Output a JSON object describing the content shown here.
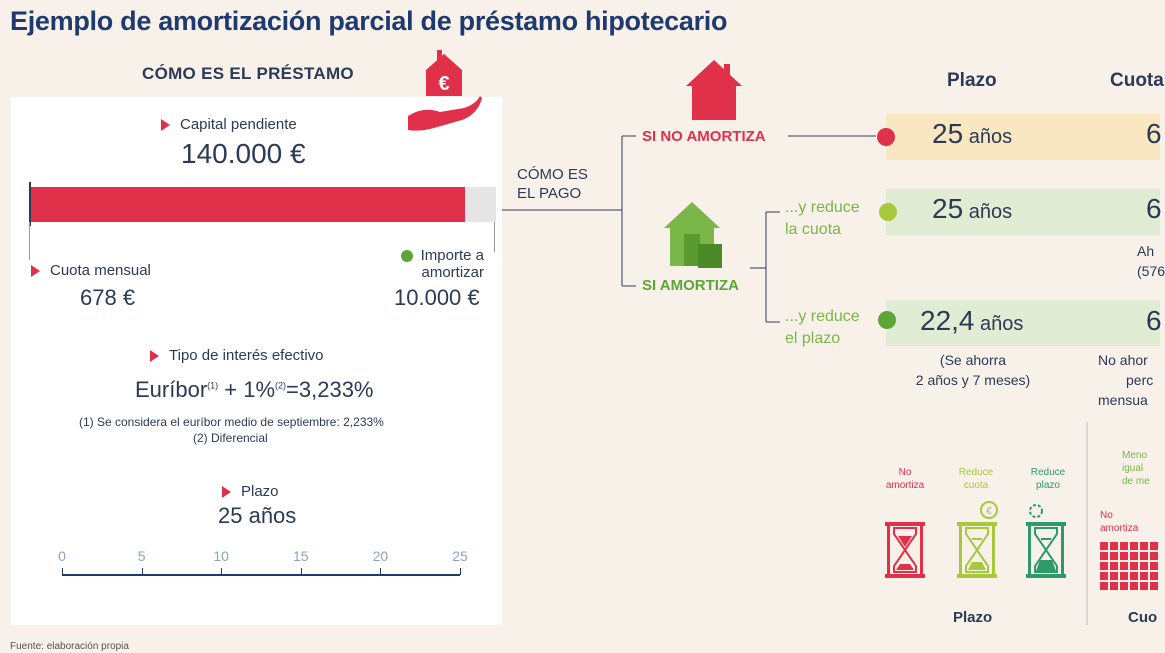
{
  "title": "Ejemplo de amortización parcial de préstamo hipotecario",
  "left": {
    "heading": "CÓMO ES EL PRÉSTAMO",
    "capital_label": "Capital pendiente",
    "capital_value": "140.000 €",
    "cuota_label": "Cuota mensual",
    "cuota_value": "678 €",
    "importe_label_1": "Importe a",
    "importe_label_2": "amortizar",
    "importe_value": "10.000 €",
    "interes_label": "Tipo de interés efectivo",
    "interes_formula_a": "Euríbor",
    "interes_sup1": "(1)",
    "interes_formula_b": " + 1%",
    "interes_sup2": "(2)",
    "interes_formula_c": "=3,233%",
    "note1": "(1) Se considera el euríbor medio de septiembre: 2,233%",
    "note2": "(2) Diferencial",
    "plazo_label": "Plazo",
    "plazo_value": "25 años",
    "scale_ticks": [
      "0",
      "5",
      "10",
      "15",
      "20",
      "25"
    ],
    "bar_fraction_amortizado": 0.933
  },
  "middle": {
    "como_es_1": "CÓMO ES",
    "como_es_2": "EL PAGO",
    "si_no": "SI NO AMORTIZA",
    "si_amortiza": "SI AMORTIZA",
    "reduce_cuota_1": "...y reduce",
    "reduce_cuota_2": "la cuota",
    "reduce_plazo_1": "...y reduce",
    "reduce_plazo_2": "el plazo"
  },
  "right": {
    "col_plazo": "Plazo",
    "col_cuota": "Cuota",
    "row1_plazo_num": "25",
    "row1_plazo_unit": " años",
    "row1_cuota": "6",
    "row2_plazo_num": "25",
    "row2_plazo_unit": " años",
    "row2_cuota": "6",
    "row2_note_1": "Ah",
    "row2_note_2": "(576",
    "row3_plazo_num": "22,4",
    "row3_plazo_unit": " años",
    "row3_cuota": "6",
    "row3_note_1": "(Se ahorra",
    "row3_note_2": "2 años y 7 meses)",
    "row3_cuota_note_1": "No ahor",
    "row3_cuota_note_2": "perc",
    "row3_cuota_note_3": "mensua",
    "hg_no_1": "No",
    "hg_no_2": "amortiza",
    "hg_rc_1": "Reduce",
    "hg_rc_2": "cuota",
    "hg_rp_1": "Reduce",
    "hg_rp_2": "plazo",
    "plazo_footer": "Plazo",
    "cuota_footer": "Cuo",
    "cuota_hdr_1": "Meno",
    "cuota_hdr_2": "igual",
    "cuota_hdr_3": "de me",
    "cuota_no_1": "No",
    "cuota_no_2": "amortiza"
  },
  "source": "Fuente: elaboración propia",
  "colors": {
    "red": "#e0304a",
    "green": "#7ab648",
    "dark_green": "#2e9a6a",
    "yellow_band": "#f9e7c2",
    "green_band": "#e0edd4",
    "navy": "#1f3a6e"
  }
}
